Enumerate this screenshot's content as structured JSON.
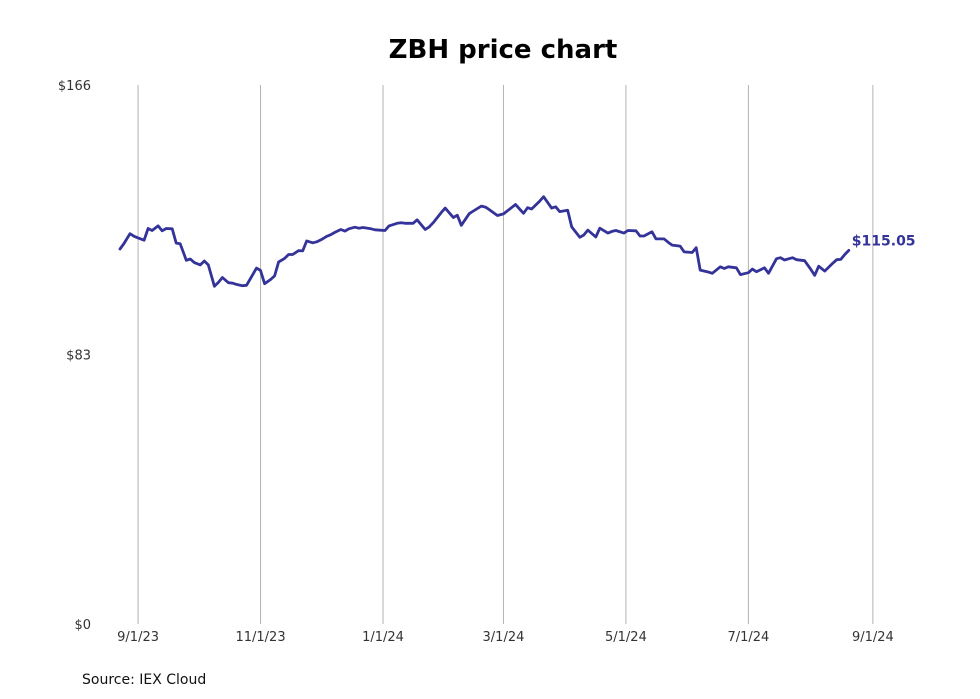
{
  "chart_data": {
    "type": "line",
    "title": "ZBH price chart",
    "xlabel": "",
    "ylabel": "",
    "y_tick_labels": [
      "$166",
      "$83",
      "$0"
    ],
    "y_ticks": [
      166,
      83,
      0
    ],
    "ylim": [
      0,
      166
    ],
    "x_tick_labels": [
      "9/1/23",
      "11/1/23",
      "1/1/24",
      "3/1/24",
      "5/1/24",
      "7/1/24",
      "9/1/24"
    ],
    "x_ticks": [
      "2023-09-01",
      "2023-11-01",
      "2024-01-01",
      "2024-03-01",
      "2024-05-01",
      "2024-07-01",
      "2024-09-01"
    ],
    "xlim": [
      "2023-08-23",
      "2024-09-17"
    ],
    "grid": "vertical",
    "last_value_label": "$115.05",
    "source": "Source: IEX Cloud",
    "series": [
      {
        "color": "#333399",
        "points": [
          [
            "2023-08-23",
            115.5
          ],
          [
            "2023-08-25",
            117.2
          ],
          [
            "2023-08-28",
            120.2
          ],
          [
            "2023-08-30",
            119.4
          ],
          [
            "2023-09-01",
            118.9
          ],
          [
            "2023-09-04",
            118.2
          ],
          [
            "2023-09-06",
            121.8
          ],
          [
            "2023-09-08",
            121.2
          ],
          [
            "2023-09-11",
            122.6
          ],
          [
            "2023-09-13",
            121.1
          ],
          [
            "2023-09-15",
            121.8
          ],
          [
            "2023-09-18",
            121.7
          ],
          [
            "2023-09-20",
            117.3
          ],
          [
            "2023-09-22",
            117.1
          ],
          [
            "2023-09-25",
            112.0
          ],
          [
            "2023-09-27",
            112.4
          ],
          [
            "2023-09-29",
            111.3
          ],
          [
            "2023-10-02",
            110.6
          ],
          [
            "2023-10-04",
            111.8
          ],
          [
            "2023-10-06",
            110.6
          ],
          [
            "2023-10-09",
            104.0
          ],
          [
            "2023-10-11",
            105.2
          ],
          [
            "2023-10-13",
            106.7
          ],
          [
            "2023-10-16",
            105.1
          ],
          [
            "2023-10-18",
            105.0
          ],
          [
            "2023-10-20",
            104.6
          ],
          [
            "2023-10-23",
            104.2
          ],
          [
            "2023-10-25",
            104.3
          ],
          [
            "2023-10-27",
            106.4
          ],
          [
            "2023-10-30",
            109.6
          ],
          [
            "2023-11-01",
            108.9
          ],
          [
            "2023-11-03",
            104.8
          ],
          [
            "2023-11-06",
            106.1
          ],
          [
            "2023-11-08",
            107.2
          ],
          [
            "2023-11-10",
            111.5
          ],
          [
            "2023-11-13",
            112.6
          ],
          [
            "2023-11-15",
            113.8
          ],
          [
            "2023-11-17",
            113.8
          ],
          [
            "2023-11-20",
            115.0
          ],
          [
            "2023-11-22",
            114.9
          ],
          [
            "2023-11-24",
            118.0
          ],
          [
            "2023-11-27",
            117.4
          ],
          [
            "2023-11-29",
            117.7
          ],
          [
            "2023-12-01",
            118.3
          ],
          [
            "2023-12-04",
            119.4
          ],
          [
            "2023-12-06",
            119.9
          ],
          [
            "2023-12-08",
            120.6
          ],
          [
            "2023-12-11",
            121.5
          ],
          [
            "2023-12-13",
            121.0
          ],
          [
            "2023-12-15",
            121.7
          ],
          [
            "2023-12-18",
            122.2
          ],
          [
            "2023-12-20",
            121.9
          ],
          [
            "2023-12-22",
            122.1
          ],
          [
            "2023-12-26",
            121.7
          ],
          [
            "2023-12-28",
            121.4
          ],
          [
            "2024-01-02",
            121.2
          ],
          [
            "2024-01-04",
            122.6
          ],
          [
            "2024-01-08",
            123.4
          ],
          [
            "2024-01-10",
            123.6
          ],
          [
            "2024-01-12",
            123.4
          ],
          [
            "2024-01-16",
            123.4
          ],
          [
            "2024-01-18",
            124.5
          ],
          [
            "2024-01-22",
            121.5
          ],
          [
            "2024-01-24",
            122.3
          ],
          [
            "2024-01-26",
            123.6
          ],
          [
            "2024-01-30",
            126.7
          ],
          [
            "2024-02-01",
            128.1
          ],
          [
            "2024-02-05",
            125.2
          ],
          [
            "2024-02-07",
            125.9
          ],
          [
            "2024-02-09",
            122.8
          ],
          [
            "2024-02-13",
            126.4
          ],
          [
            "2024-02-15",
            127.2
          ],
          [
            "2024-02-19",
            128.7
          ],
          [
            "2024-02-21",
            128.4
          ],
          [
            "2024-02-23",
            127.6
          ],
          [
            "2024-02-27",
            125.8
          ],
          [
            "2024-03-01",
            126.3
          ],
          [
            "2024-03-05",
            128.2
          ],
          [
            "2024-03-07",
            129.2
          ],
          [
            "2024-03-11",
            126.5
          ],
          [
            "2024-03-13",
            128.2
          ],
          [
            "2024-03-15",
            127.8
          ],
          [
            "2024-03-19",
            130.2
          ],
          [
            "2024-03-21",
            131.6
          ],
          [
            "2024-03-25",
            128.1
          ],
          [
            "2024-03-27",
            128.5
          ],
          [
            "2024-03-29",
            127.0
          ],
          [
            "2024-04-02",
            127.4
          ],
          [
            "2024-04-04",
            122.3
          ],
          [
            "2024-04-08",
            119.1
          ],
          [
            "2024-04-10",
            119.8
          ],
          [
            "2024-04-12",
            121.3
          ],
          [
            "2024-04-16",
            119.2
          ],
          [
            "2024-04-18",
            121.9
          ],
          [
            "2024-04-22",
            120.4
          ],
          [
            "2024-04-24",
            120.9
          ],
          [
            "2024-04-26",
            121.2
          ],
          [
            "2024-04-30",
            120.4
          ],
          [
            "2024-05-02",
            121.2
          ],
          [
            "2024-05-06",
            121.1
          ],
          [
            "2024-05-08",
            119.5
          ],
          [
            "2024-05-10",
            119.5
          ],
          [
            "2024-05-14",
            120.8
          ],
          [
            "2024-05-16",
            118.6
          ],
          [
            "2024-05-20",
            118.6
          ],
          [
            "2024-05-22",
            117.6
          ],
          [
            "2024-05-24",
            116.7
          ],
          [
            "2024-05-28",
            116.4
          ],
          [
            "2024-05-30",
            114.6
          ],
          [
            "2024-06-03",
            114.4
          ],
          [
            "2024-06-05",
            115.9
          ],
          [
            "2024-06-07",
            109.0
          ],
          [
            "2024-06-11",
            108.4
          ],
          [
            "2024-06-13",
            108.0
          ],
          [
            "2024-06-17",
            110.0
          ],
          [
            "2024-06-19",
            109.5
          ],
          [
            "2024-06-21",
            110.0
          ],
          [
            "2024-06-25",
            109.7
          ],
          [
            "2024-06-27",
            107.6
          ],
          [
            "2024-07-01",
            108.2
          ],
          [
            "2024-07-03",
            109.3
          ],
          [
            "2024-07-05",
            108.5
          ],
          [
            "2024-07-09",
            109.7
          ],
          [
            "2024-07-11",
            108.0
          ],
          [
            "2024-07-15",
            112.5
          ],
          [
            "2024-07-17",
            112.8
          ],
          [
            "2024-07-19",
            112.1
          ],
          [
            "2024-07-23",
            112.8
          ],
          [
            "2024-07-25",
            112.2
          ],
          [
            "2024-07-29",
            111.9
          ],
          [
            "2024-08-01",
            109.3
          ],
          [
            "2024-08-03",
            107.4
          ],
          [
            "2024-08-05",
            110.2
          ],
          [
            "2024-08-08",
            108.7
          ],
          [
            "2024-08-12",
            111.1
          ],
          [
            "2024-08-14",
            112.2
          ],
          [
            "2024-08-16",
            112.3
          ],
          [
            "2024-08-18",
            113.8
          ],
          [
            "2024-08-20",
            115.05
          ]
        ]
      }
    ]
  }
}
